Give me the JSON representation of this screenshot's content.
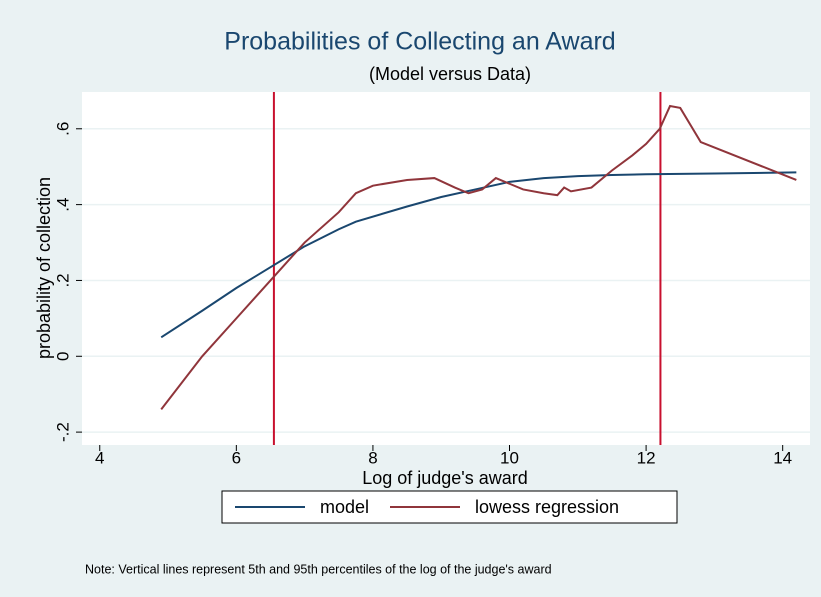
{
  "chart_data": {
    "type": "line",
    "title": "Probabilities of Collecting an Award",
    "subtitle": "(Model versus Data)",
    "x_label": "Log of judge's award",
    "y_label": "probability of collection",
    "note": "Note: Vertical lines represent 5th and 95th percentiles of the log of the judge's award",
    "xlim": [
      3.74,
      14.4
    ],
    "xticks": [
      4,
      6,
      8,
      10,
      12,
      14
    ],
    "ylim": [
      -0.234,
      0.697
    ],
    "yticks": [
      {
        "value": -0.2,
        "label": "-.2"
      },
      0,
      {
        "value": 0.2,
        "label": ".2"
      },
      {
        "value": 0.4,
        "label": ".4"
      },
      {
        "value": 0.6,
        "label": ".6"
      }
    ],
    "grid": true,
    "legend": "bottom",
    "vlines": [
      6.55,
      12.21
    ],
    "vline_color": "#c8102e",
    "series": [
      {
        "name": "model",
        "color": "#1a476f",
        "x": [
          4.9,
          5.5,
          6.0,
          6.5,
          7.0,
          7.5,
          7.75,
          8.5,
          9.0,
          9.5,
          10.0,
          10.5,
          11.0,
          11.5,
          12.0,
          13.0,
          14.2
        ],
        "values": [
          0.05,
          0.12,
          0.18,
          0.235,
          0.29,
          0.335,
          0.355,
          0.395,
          0.42,
          0.44,
          0.46,
          0.47,
          0.475,
          0.478,
          0.48,
          0.482,
          0.485
        ]
      },
      {
        "name": "lowess regression",
        "color": "#90353b",
        "x": [
          4.9,
          5.5,
          6.0,
          6.5,
          7.0,
          7.5,
          7.75,
          8.0,
          8.5,
          8.9,
          9.2,
          9.4,
          9.6,
          9.8,
          10.0,
          10.2,
          10.5,
          10.7,
          10.8,
          10.9,
          11.2,
          11.5,
          11.8,
          12.0,
          12.2,
          12.35,
          12.5,
          12.8,
          14.2
        ],
        "values": [
          -0.14,
          0.0,
          0.1,
          0.2,
          0.3,
          0.38,
          0.43,
          0.45,
          0.465,
          0.47,
          0.445,
          0.43,
          0.44,
          0.47,
          0.455,
          0.44,
          0.43,
          0.425,
          0.445,
          0.435,
          0.445,
          0.49,
          0.53,
          0.56,
          0.6,
          0.66,
          0.655,
          0.565,
          0.465
        ]
      }
    ]
  }
}
